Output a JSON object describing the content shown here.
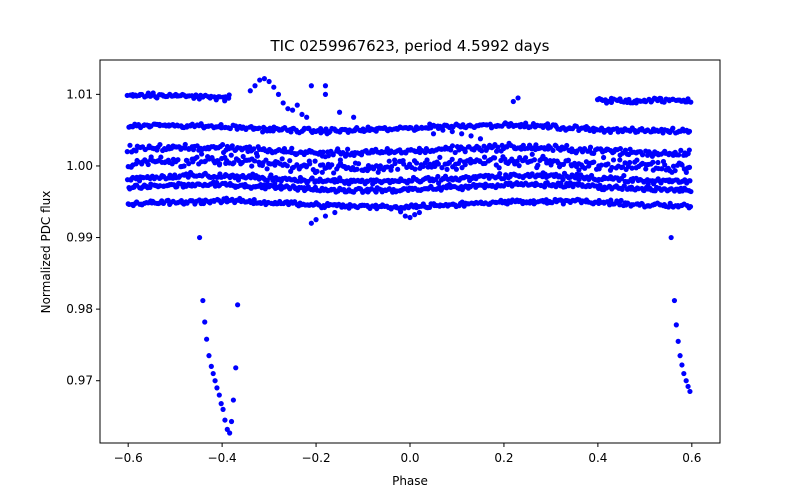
{
  "chart_data": {
    "type": "scatter",
    "title": "TIC 0259967623, period 4.5992 days",
    "xlabel": "Phase",
    "ylabel": "Normalized PDC flux",
    "xlim": [
      -0.66,
      0.66
    ],
    "ylim": [
      0.9613,
      1.0148
    ],
    "xticks": [
      -0.6,
      -0.4,
      -0.2,
      0.0,
      0.2,
      0.4,
      0.6
    ],
    "xtick_labels": [
      "−0.6",
      "−0.4",
      "−0.2",
      "0.0",
      "0.2",
      "0.4",
      "0.6"
    ],
    "yticks": [
      0.97,
      0.98,
      0.99,
      1.0,
      1.01
    ],
    "ytick_labels": [
      "0.97",
      "0.98",
      "0.99",
      "1.00",
      "1.01"
    ],
    "grid": false,
    "marker_color": "#0000ff",
    "bands": [
      {
        "name": "band-1.010",
        "level": 1.0095,
        "spread": 0.0006,
        "x_ranges": [
          [
            -0.6,
            -0.38
          ],
          [
            0.4,
            0.6
          ]
        ]
      },
      {
        "name": "band-1.005",
        "level": 1.0053,
        "spread": 0.0005,
        "x_ranges": [
          [
            -0.6,
            0.6
          ]
        ]
      },
      {
        "name": "band-1.002",
        "level": 1.0022,
        "spread": 0.0007,
        "x_ranges": [
          [
            -0.6,
            0.6
          ]
        ]
      },
      {
        "name": "band-1.000",
        "level": 1.0003,
        "spread": 0.0012,
        "x_ranges": [
          [
            -0.6,
            0.6
          ]
        ]
      },
      {
        "name": "band-0.998",
        "level": 0.9982,
        "spread": 0.0006,
        "x_ranges": [
          [
            -0.6,
            0.6
          ]
        ]
      },
      {
        "name": "band-0.997",
        "level": 0.997,
        "spread": 0.0005,
        "x_ranges": [
          [
            -0.6,
            0.6
          ]
        ]
      },
      {
        "name": "band-0.995",
        "level": 0.9947,
        "spread": 0.0005,
        "x_ranges": [
          [
            -0.6,
            0.6
          ]
        ]
      }
    ],
    "scattered_points": [
      {
        "x": -0.32,
        "y": 1.012
      },
      {
        "x": -0.31,
        "y": 1.0122
      },
      {
        "x": -0.3,
        "y": 1.0118
      },
      {
        "x": -0.29,
        "y": 1.011
      },
      {
        "x": -0.28,
        "y": 1.01
      },
      {
        "x": -0.33,
        "y": 1.0112
      },
      {
        "x": -0.34,
        "y": 1.0105
      },
      {
        "x": -0.27,
        "y": 1.0088
      },
      {
        "x": -0.26,
        "y": 1.008
      },
      {
        "x": -0.25,
        "y": 1.0078
      },
      {
        "x": -0.24,
        "y": 1.0085
      },
      {
        "x": -0.23,
        "y": 1.0072
      },
      {
        "x": -0.22,
        "y": 1.0068
      },
      {
        "x": -0.18,
        "y": 1.0112
      },
      {
        "x": -0.18,
        "y": 1.01
      },
      {
        "x": -0.21,
        "y": 1.0112
      },
      {
        "x": -0.15,
        "y": 1.0075
      },
      {
        "x": -0.12,
        "y": 1.0068
      },
      {
        "x": 0.23,
        "y": 1.0095
      },
      {
        "x": 0.22,
        "y": 1.009
      },
      {
        "x": 0.07,
        "y": 1.005
      },
      {
        "x": 0.09,
        "y": 1.0048
      },
      {
        "x": 0.11,
        "y": 1.0045
      },
      {
        "x": 0.13,
        "y": 1.0042
      },
      {
        "x": 0.05,
        "y": 1.0045
      },
      {
        "x": 0.15,
        "y": 1.0038
      },
      {
        "x": -0.21,
        "y": 0.992
      },
      {
        "x": -0.2,
        "y": 0.9925
      },
      {
        "x": -0.18,
        "y": 0.993
      },
      {
        "x": -0.16,
        "y": 0.9935
      },
      {
        "x": -0.01,
        "y": 0.993
      },
      {
        "x": 0.0,
        "y": 0.9928
      },
      {
        "x": 0.01,
        "y": 0.9932
      },
      {
        "x": 0.02,
        "y": 0.9935
      },
      {
        "x": -0.02,
        "y": 0.9936
      }
    ],
    "transit_left": [
      {
        "x": -0.437,
        "y": 0.9782
      },
      {
        "x": -0.433,
        "y": 0.9758
      },
      {
        "x": -0.428,
        "y": 0.9735
      },
      {
        "x": -0.423,
        "y": 0.972
      },
      {
        "x": -0.419,
        "y": 0.971
      },
      {
        "x": -0.415,
        "y": 0.97
      },
      {
        "x": -0.411,
        "y": 0.969
      },
      {
        "x": -0.406,
        "y": 0.968
      },
      {
        "x": -0.402,
        "y": 0.9668
      },
      {
        "x": -0.398,
        "y": 0.966
      },
      {
        "x": -0.394,
        "y": 0.9645
      },
      {
        "x": -0.389,
        "y": 0.9632
      },
      {
        "x": -0.384,
        "y": 0.9627
      },
      {
        "x": -0.38,
        "y": 0.9643
      },
      {
        "x": -0.376,
        "y": 0.9673
      },
      {
        "x": -0.371,
        "y": 0.9718
      },
      {
        "x": -0.367,
        "y": 0.9806
      },
      {
        "x": -0.441,
        "y": 0.9812
      },
      {
        "x": -0.448,
        "y": 0.99
      }
    ],
    "transit_right": [
      {
        "x": 0.556,
        "y": 0.99
      },
      {
        "x": 0.563,
        "y": 0.9812
      },
      {
        "x": 0.567,
        "y": 0.9778
      },
      {
        "x": 0.571,
        "y": 0.9755
      },
      {
        "x": 0.575,
        "y": 0.9735
      },
      {
        "x": 0.579,
        "y": 0.9722
      },
      {
        "x": 0.583,
        "y": 0.971
      },
      {
        "x": 0.588,
        "y": 0.97
      },
      {
        "x": 0.592,
        "y": 0.9692
      },
      {
        "x": 0.596,
        "y": 0.9685
      }
    ]
  }
}
